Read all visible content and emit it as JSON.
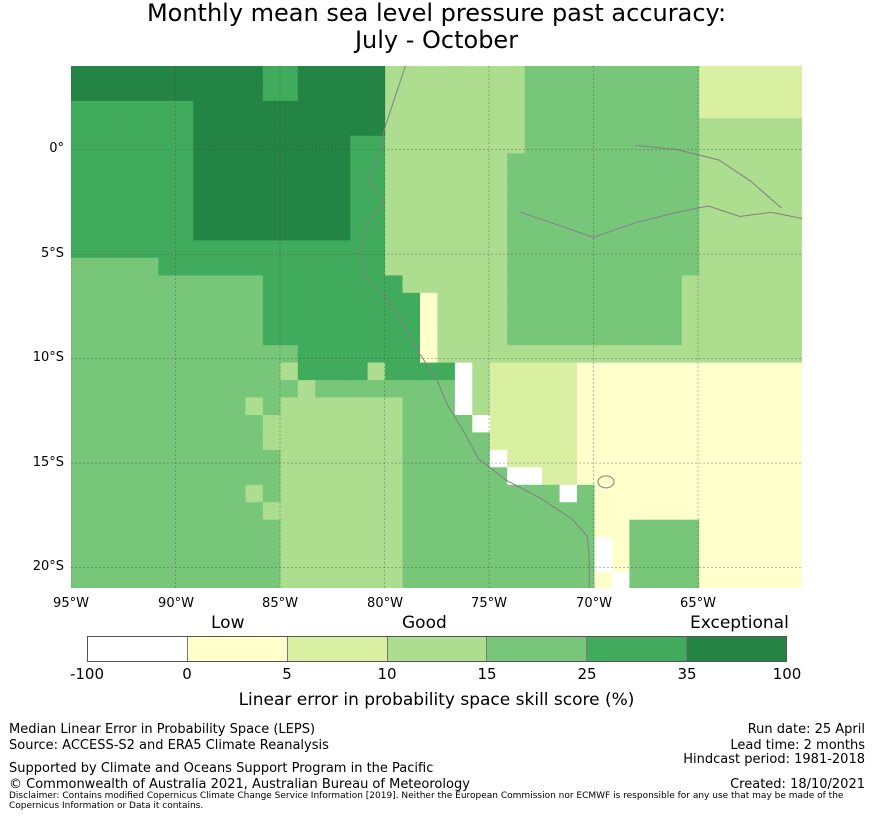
{
  "title_line1": "Monthly mean sea level pressure past accuracy:",
  "title_line2": "July - October",
  "map": {
    "lon_range": [
      -95,
      -60
    ],
    "lat_range": [
      -21,
      4
    ],
    "lat_ticks": [
      "0°",
      "5°S",
      "10°S",
      "15°S",
      "20°S"
    ],
    "lon_ticks": [
      "95°W",
      "90°W",
      "85°W",
      "80°W",
      "75°W",
      "70°W",
      "65°W"
    ],
    "gridlines": true,
    "coastline_color": "#808080"
  },
  "colorbar": {
    "categories": [
      "Low",
      "Good",
      "Exceptional"
    ],
    "ticks": [
      "-100",
      "0",
      "5",
      "10",
      "15",
      "25",
      "35",
      "100"
    ],
    "colors": [
      "#ffffff",
      "#ffffcc",
      "#d9f0a3",
      "#addd8e",
      "#78c679",
      "#41ab5d",
      "#238443"
    ],
    "label": "Linear error in probability space skill score (%)"
  },
  "footer": {
    "left_line1": "Median Linear Error in Probability Space (LEPS)",
    "left_line2": "Source: ACCESS-S2 and ERA5 Climate Reanalysis",
    "support": "Supported by Climate and Oceans Support Program in the Pacific",
    "copyright": "© Commonwealth of Australia 2021, Australian Bureau of Meteorology",
    "run_date": "Run date: 25 April",
    "lead_time": "Lead time: 2 months",
    "hindcast": "Hindcast period: 1981-2018",
    "created": "Created: 18/10/2021",
    "disclaimer": "Disclaimer: Contains modified Copernicus Climate Change Service Information [2019]. Neither the European Commission nor ECMWF is responsible for any use that may be made of the Copernicus Information or Data it contains."
  }
}
